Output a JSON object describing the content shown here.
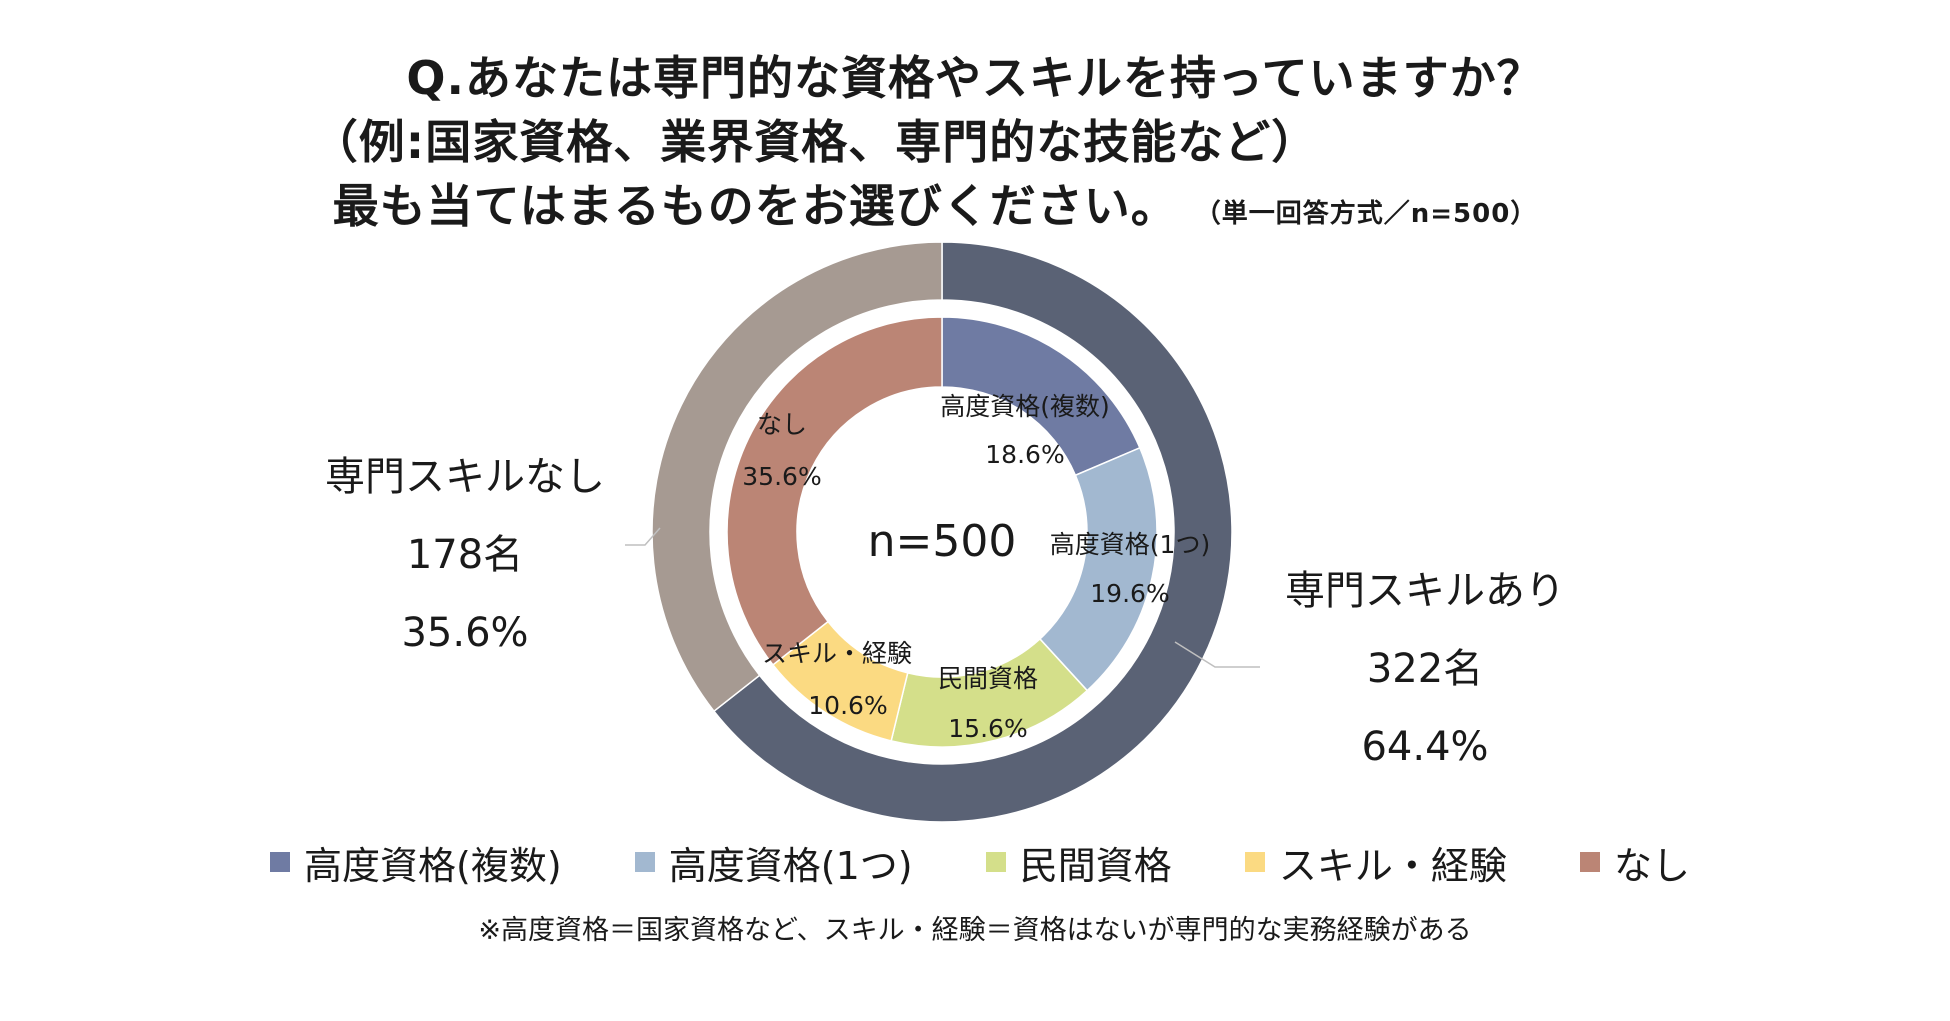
{
  "title": {
    "line1": "Q.あなたは専門的な資格やスキルを持っていますか？",
    "line2": "（例:国家資格、業界資格、専門的な技能など）",
    "line3": "最も当てはまるものをお選びください。",
    "note": "（単一回答方式／n=500）"
  },
  "chart_data": {
    "type": "pie",
    "subtype": "nested-donut",
    "center_label": "n=500",
    "outer": [
      {
        "name": "専門スキルあり",
        "count_label": "322名",
        "percent_label": "64.4%",
        "value": 64.4,
        "color": "#5a6275"
      },
      {
        "name": "専門スキルなし",
        "count_label": "178名",
        "percent_label": "35.6%",
        "value": 35.6,
        "color": "#a69a92"
      }
    ],
    "inner": [
      {
        "name": "高度資格(複数)",
        "label": "高度資格(複数)",
        "percent_label": "18.6%",
        "value": 18.6,
        "color": "#6f7ba3"
      },
      {
        "name": "高度資格(1つ)",
        "label": "高度資格(1つ)",
        "percent_label": "19.6%",
        "value": 19.6,
        "color": "#a2b8d0"
      },
      {
        "name": "民間資格",
        "label": "民間資格",
        "percent_label": "15.6%",
        "value": 15.6,
        "color": "#d4df8a"
      },
      {
        "name": "スキル・経験",
        "label": "スキル・経験",
        "percent_label": "10.6%",
        "value": 10.6,
        "color": "#fbda82"
      },
      {
        "name": "なし",
        "label": "なし",
        "percent_label": "35.6%",
        "value": 35.6,
        "color": "#bb8575"
      }
    ],
    "legend_position": "bottom"
  },
  "legend": [
    {
      "label": "高度資格(複数)",
      "color": "#6f7ba3"
    },
    {
      "label": "高度資格(1つ)",
      "color": "#a2b8d0"
    },
    {
      "label": "民間資格",
      "color": "#d4df8a"
    },
    {
      "label": "スキル・経験",
      "color": "#fbda82"
    },
    {
      "label": "なし",
      "color": "#bb8575"
    }
  ],
  "footnote": "※高度資格＝国家資格など、スキル・経験＝資格はないが専門的な実務経験がある"
}
